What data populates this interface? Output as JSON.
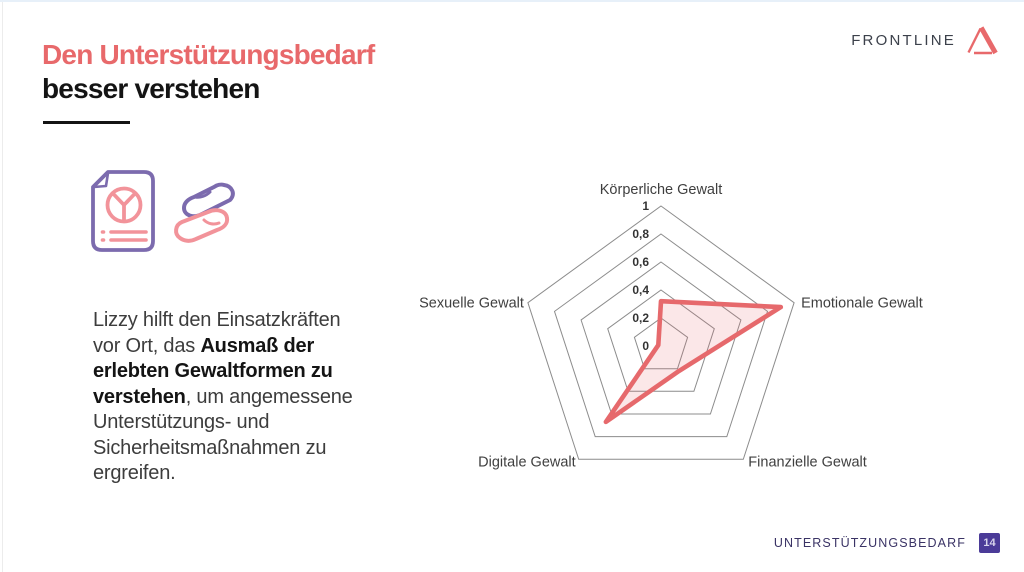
{
  "slide": {
    "title": {
      "line1": "Den Unterstützungsbedarf",
      "line2": "besser verstehen"
    },
    "logo": {
      "text": "FRONTLINE"
    },
    "body": {
      "lines": [
        [
          {
            "t": "Lizzy hilft den Einsatzkräften",
            "b": false
          }
        ],
        [
          {
            "t": "vor Ort, das ",
            "b": false
          },
          {
            "t": "Ausmaß der",
            "b": true
          }
        ],
        [
          {
            "t": "erlebten Gewaltformen zu",
            "b": true
          }
        ],
        [
          {
            "t": "verstehen",
            "b": true
          },
          {
            "t": ", um angemessene",
            "b": false
          }
        ],
        [
          {
            "t": "Unterstützungs- und",
            "b": false
          }
        ],
        [
          {
            "t": "Sicherheitsmaßnahmen zu",
            "b": false
          }
        ],
        [
          {
            "t": "ergreifen.",
            "b": false
          }
        ]
      ]
    },
    "footer": {
      "section_label": "UNTERSTÜTZUNGSBEDARF",
      "page_number": "14"
    }
  },
  "colors": {
    "accent_red": "#e8696b",
    "chart_red": "#e6696c",
    "icon_purple": "#7c6bae",
    "icon_pink": "#f2939a",
    "footer_text": "#3a3365",
    "badge_bg": "#4b3b98",
    "grid_gray": "#8c8c8c",
    "radar_fill": "rgba(230,106,109,0.16)",
    "edge_blue": "#e7f0f9"
  },
  "chart_data": {
    "type": "radar",
    "categories": [
      "Körperliche Gewalt",
      "Emotionale Gewalt",
      "Finanzielle Gewalt",
      "Digitale Gewalt",
      "Sexuelle Gewalt"
    ],
    "values": [
      0.32,
      0.9,
      0.22,
      0.67,
      0.02
    ],
    "rings": [
      0.2,
      0.4,
      0.6,
      0.8,
      1.0
    ],
    "tick_labels": [
      "0",
      "0,2",
      "0,4",
      "0,6",
      "0,8",
      "1"
    ],
    "ylim": [
      0,
      1
    ],
    "grid": true,
    "legend": false,
    "axes_start": "top",
    "direction": "clockwise"
  }
}
